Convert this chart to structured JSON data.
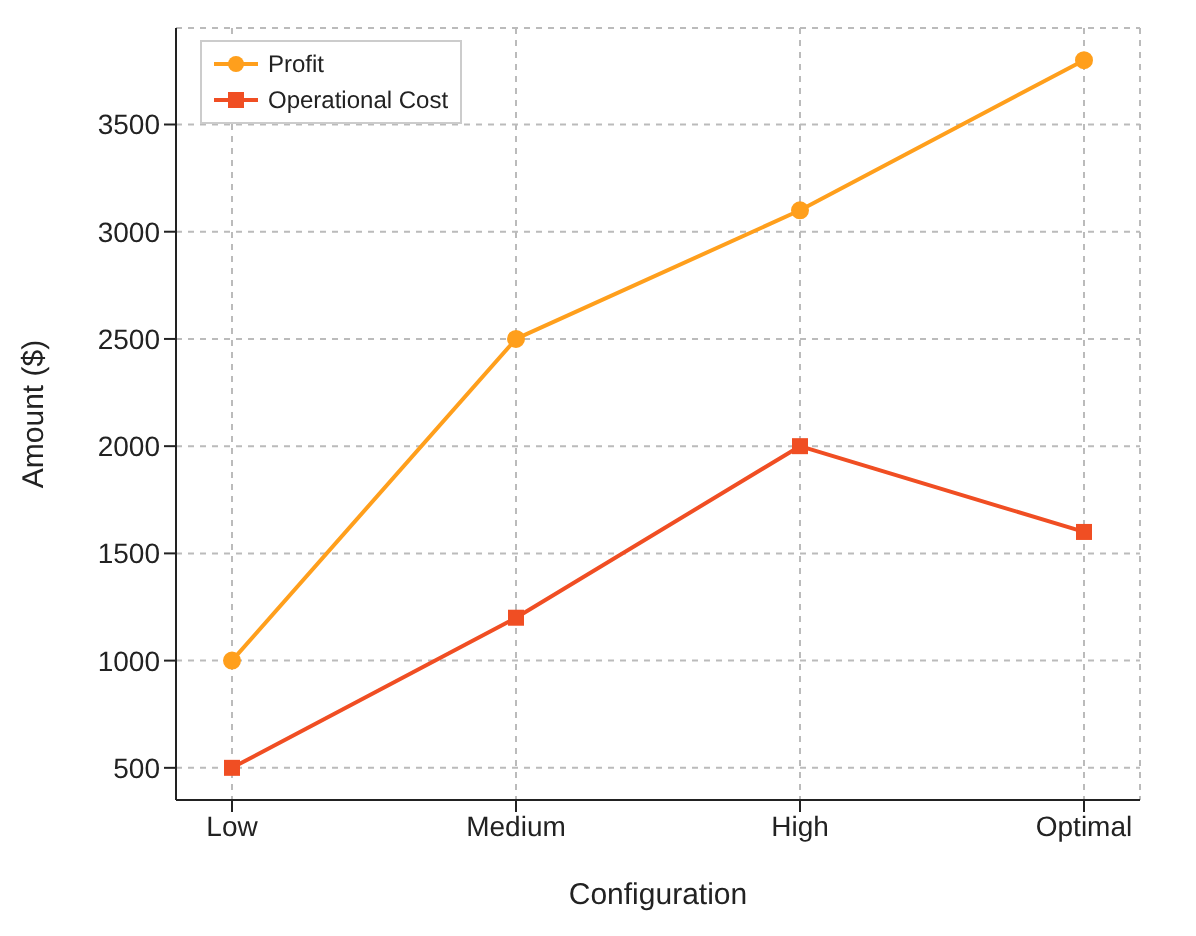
{
  "chart_data": {
    "type": "line",
    "xlabel": "Configuration",
    "ylabel": "Amount ($)",
    "categories": [
      "Low",
      "Medium",
      "High",
      "Optimal"
    ],
    "series": [
      {
        "name": "Profit",
        "color": "#ff9f1c",
        "values": [
          1000,
          2500,
          3100,
          3800
        ],
        "marker": "circle"
      },
      {
        "name": "Operational Cost",
        "color": "#f04e23",
        "values": [
          500,
          1200,
          2000,
          1600
        ],
        "marker": "square"
      }
    ],
    "ylim": [
      350,
      3950
    ],
    "yticks": [
      500,
      1000,
      1500,
      2000,
      2500,
      3000,
      3500
    ],
    "grid": true,
    "legend": "top left",
    "line_style": "solid"
  }
}
